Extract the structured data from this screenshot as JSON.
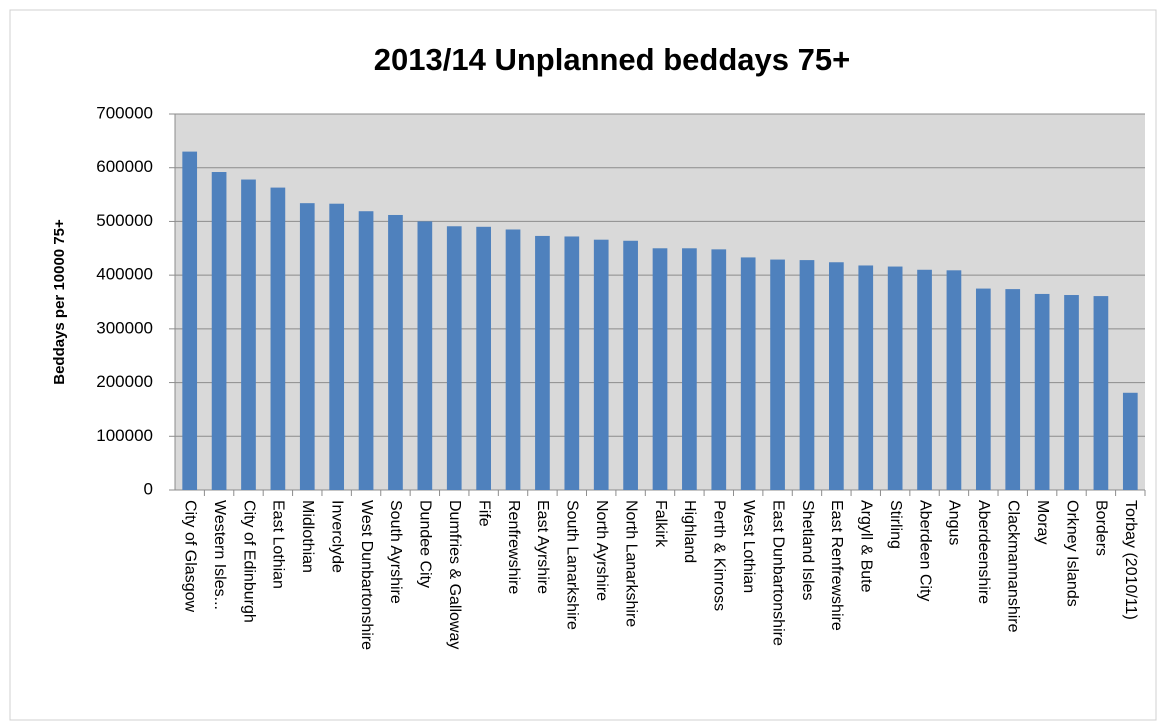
{
  "chart_data": {
    "type": "bar",
    "title": "2013/14 Unplanned beddays 75+",
    "y_label": "Beddays per 10000 75+",
    "categories": [
      "City of Glasgow",
      "Western Isles...",
      "City of Edinburgh",
      "East Lothian",
      "Midlothian",
      "Inverclyde",
      "West Dunbartonshire",
      "South Ayrshire",
      "Dundee City",
      "Dumfries & Galloway",
      "Fife",
      "Renfrewshire",
      "East Ayrshire",
      "South Lanarkshire",
      "North Ayrshire",
      "North Lanarkshire",
      "Falkirk",
      "Highland",
      "Perth & Kinross",
      "West Lothian",
      "East Dunbartonshire",
      "Shetland Isles",
      "East Renfrewshire",
      "Argyll & Bute",
      "Stirling",
      "Aberdeen City",
      "Angus",
      "Aberdeenshire",
      "Clackmannanshire",
      "Moray",
      "Orkney Islands",
      "Borders",
      "Torbay (2010/11)"
    ],
    "values": [
      630000,
      592000,
      578000,
      563000,
      534000,
      533000,
      519000,
      512000,
      500000,
      491000,
      490000,
      485000,
      473000,
      472000,
      466000,
      464000,
      450000,
      450000,
      448000,
      433000,
      429000,
      428000,
      424000,
      418000,
      416000,
      410000,
      409000,
      375000,
      374000,
      365000,
      363000,
      361000,
      181000
    ],
    "color": "#4f81bd",
    "ylim": [
      0,
      700000
    ],
    "yticks": [
      0,
      100000,
      200000,
      300000,
      400000,
      500000,
      600000,
      700000
    ],
    "grid": true
  }
}
